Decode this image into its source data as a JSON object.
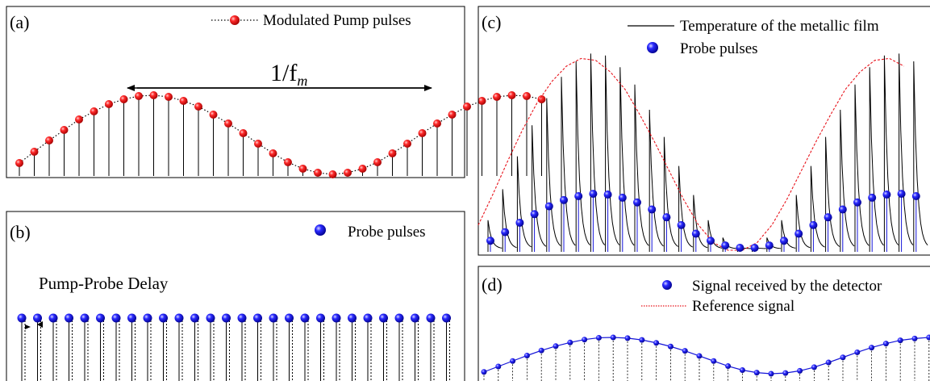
{
  "chart_data": [
    {
      "panel": "(a)",
      "type": "scatter",
      "legend": "Modulated Pump pulses",
      "period_label": "1/f",
      "period_sub": "m",
      "values": [
        0.14,
        0.28,
        0.42,
        0.55,
        0.68,
        0.78,
        0.87,
        0.93,
        0.97,
        0.98,
        0.96,
        0.91,
        0.84,
        0.74,
        0.63,
        0.51,
        0.38,
        0.26,
        0.15,
        0.07,
        0.02,
        0.0,
        0.02,
        0.07,
        0.15,
        0.26,
        0.38,
        0.51,
        0.63,
        0.74,
        0.84,
        0.91,
        0.96,
        0.98,
        0.97,
        0.93
      ],
      "colors": {
        "marker": "#e8141c",
        "line": "#000000"
      }
    },
    {
      "panel": "(b)",
      "type": "scatter",
      "legend": "Probe pulses",
      "annotation": "Pump-Probe Delay",
      "count": 28,
      "colors": {
        "marker": "#1414d8"
      }
    },
    {
      "panel": "(c)",
      "type": "line",
      "legend_line": "Temperature of the metallic film",
      "legend_marker": "Probe pulses",
      "envelope": [
        0.13,
        0.29,
        0.46,
        0.62,
        0.76,
        0.87,
        0.95,
        0.99,
        0.98,
        0.92,
        0.83,
        0.7,
        0.56,
        0.41,
        0.26,
        0.13,
        0.04,
        0.0,
        0.0,
        0.04,
        0.13,
        0.26,
        0.41,
        0.56,
        0.7,
        0.83,
        0.92,
        0.98,
        0.99,
        0.95
      ],
      "probe": [
        0.09,
        0.2,
        0.32,
        0.43,
        0.53,
        0.61,
        0.66,
        0.69,
        0.68,
        0.64,
        0.58,
        0.49,
        0.39,
        0.29,
        0.18,
        0.09,
        0.03,
        0.0,
        0.0,
        0.03,
        0.09,
        0.18,
        0.29,
        0.39,
        0.49,
        0.58,
        0.64,
        0.68,
        0.69,
        0.66
      ],
      "colors": {
        "envelope": "#e8141c",
        "temperature": "#000000",
        "probe": "#1414d8"
      }
    },
    {
      "panel": "(d)",
      "type": "line",
      "legend_marker": "Signal received by the detector",
      "legend_line": "Reference signal",
      "values": [
        0.05,
        0.2,
        0.35,
        0.5,
        0.64,
        0.76,
        0.86,
        0.94,
        0.99,
        1.0,
        0.98,
        0.93,
        0.85,
        0.75,
        0.63,
        0.49,
        0.35,
        0.21,
        0.1,
        0.03,
        0.0,
        0.02,
        0.08,
        0.18,
        0.31,
        0.45,
        0.59,
        0.72,
        0.83,
        0.92,
        0.97,
        1.0
      ],
      "colors": {
        "marker": "#1414d8",
        "line": "#1414d8"
      }
    }
  ]
}
